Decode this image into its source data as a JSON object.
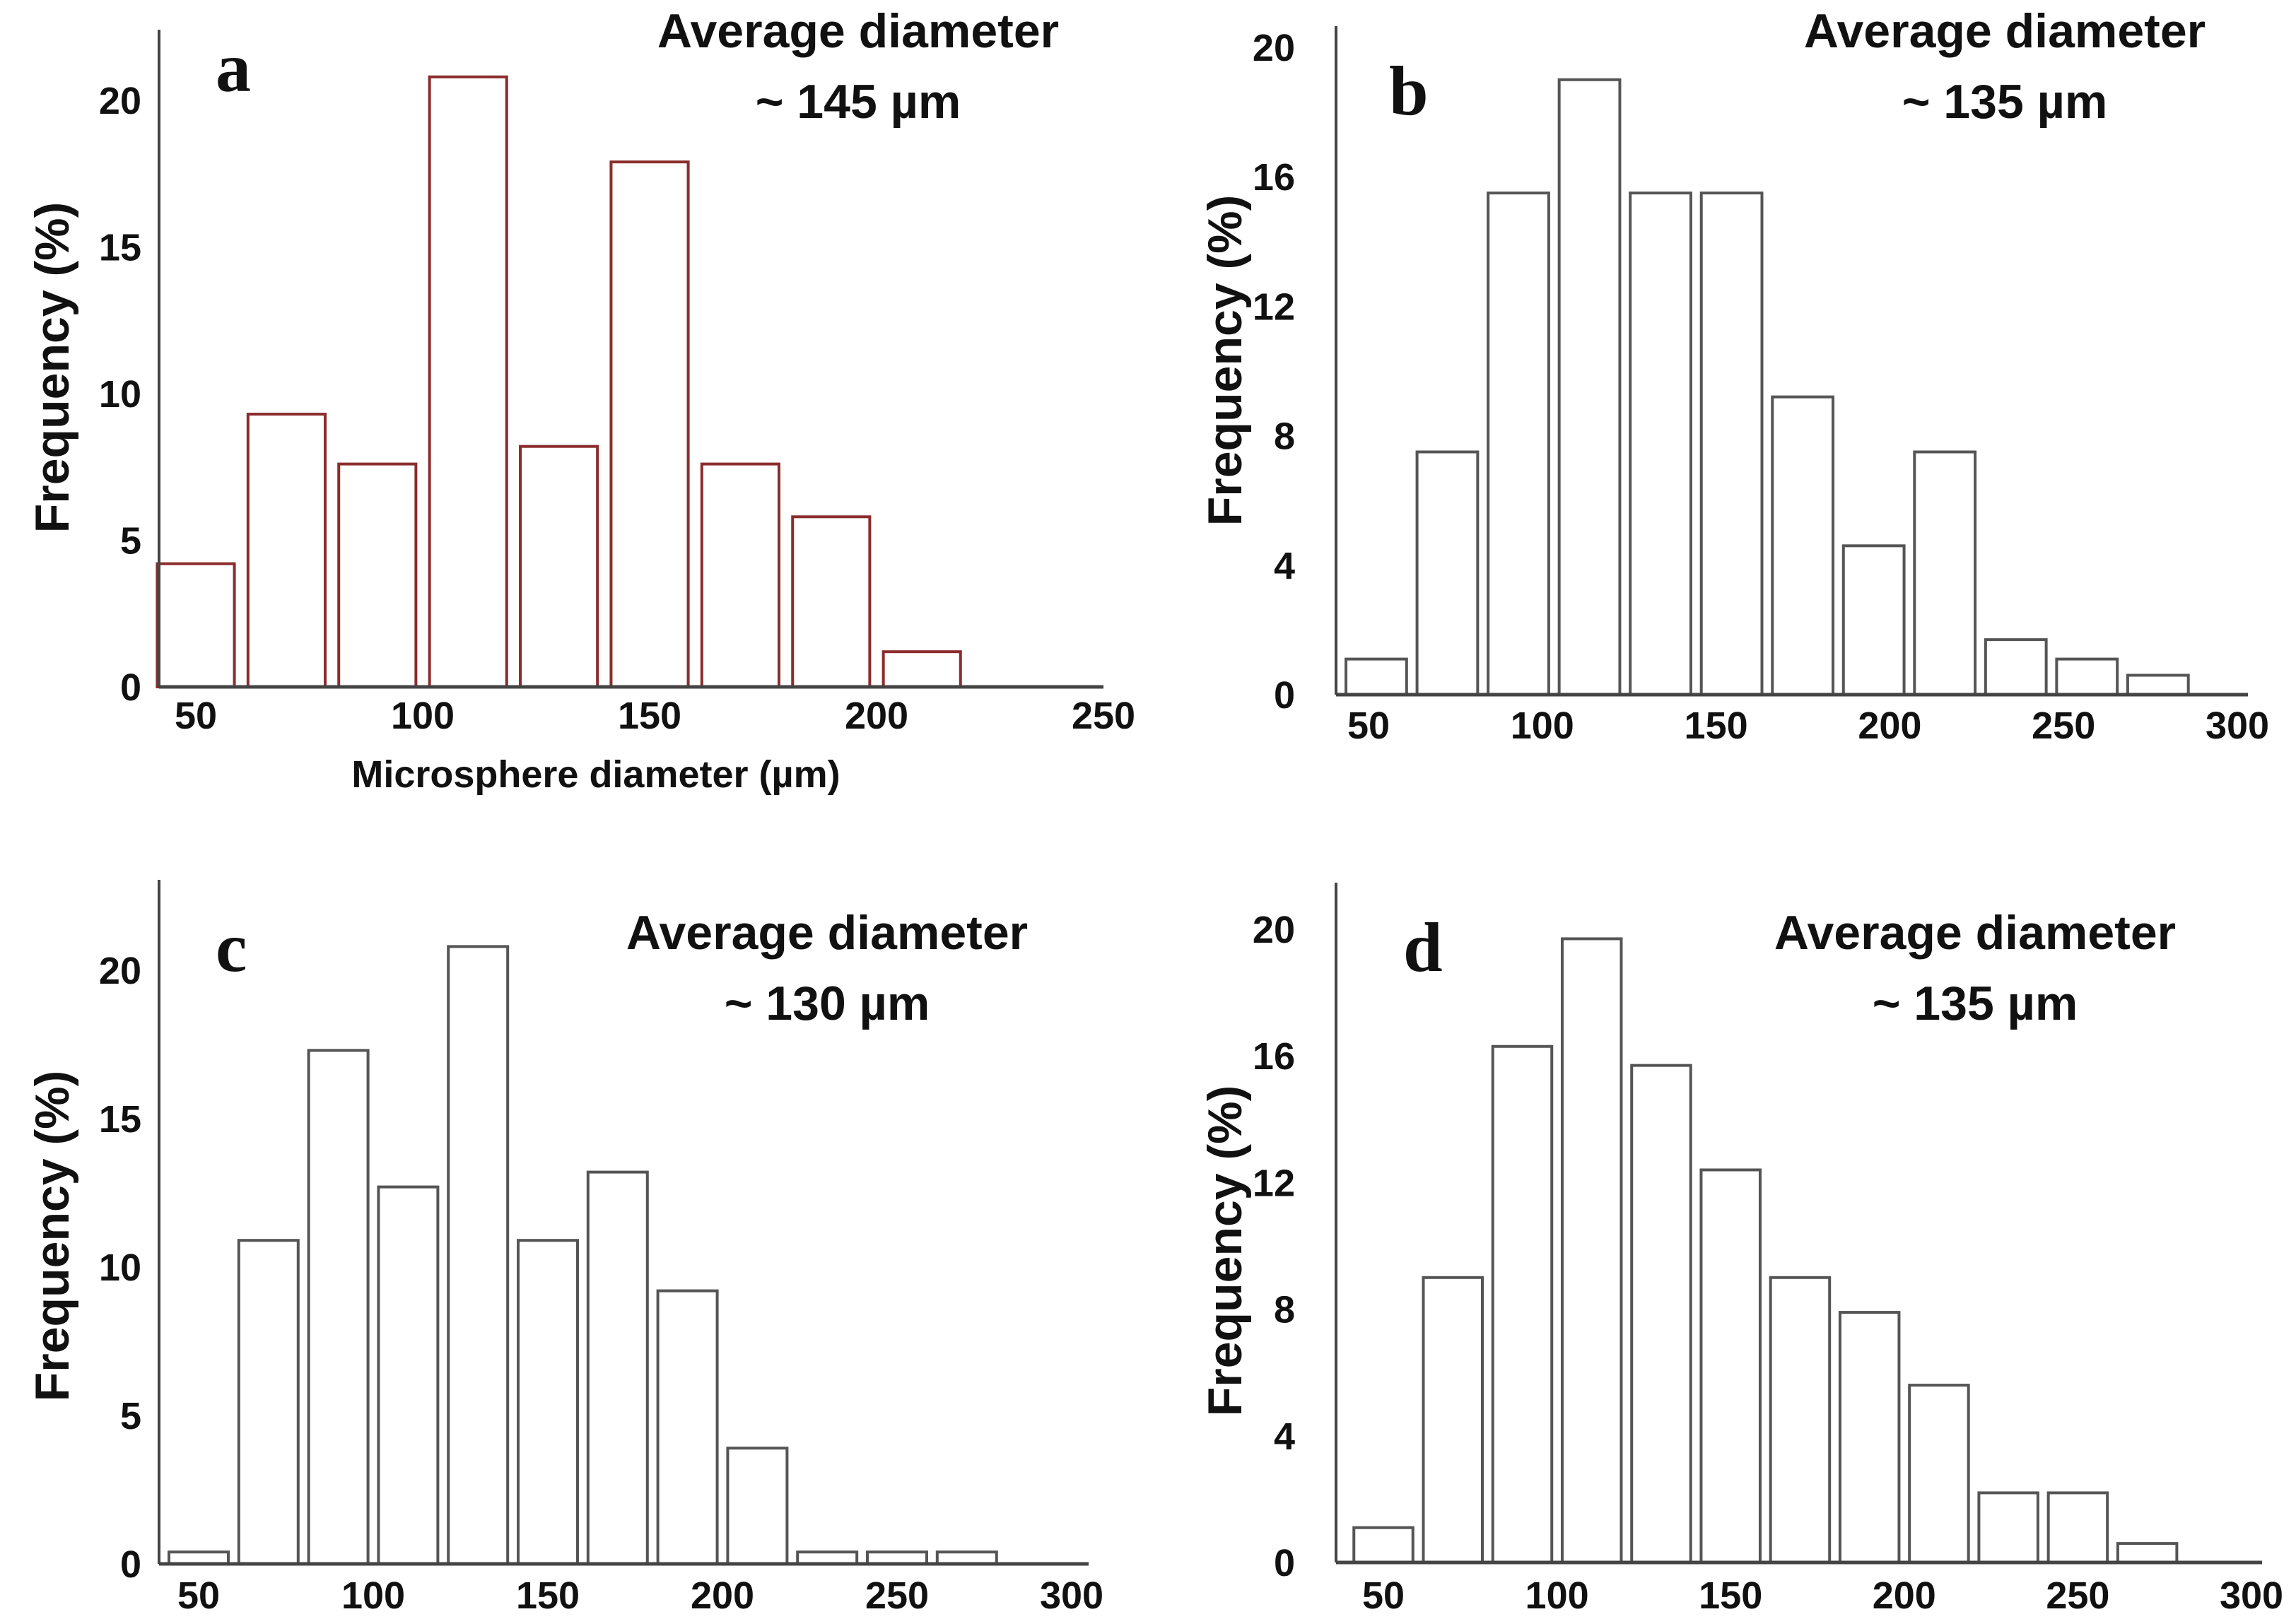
{
  "chart_data": [
    {
      "type": "bar",
      "panel": "a",
      "title": "Average diameter",
      "subtitle": "~ 145 µm",
      "xlabel": "Microsphere diameter (µm)",
      "ylabel": "Frequency (%)",
      "xticks": [
        "50",
        "100",
        "150",
        "200",
        "250"
      ],
      "yticks": [
        "0",
        "5",
        "10",
        "15",
        "20"
      ],
      "xlim": [
        43,
        250
      ],
      "ylim": [
        0,
        22.6
      ],
      "bin_start": 40,
      "bin_width": 20,
      "values": [
        4.2,
        9.3,
        7.6,
        20.8,
        8.2,
        17.9,
        7.6,
        5.8,
        1.2
      ],
      "color": "#8b2c2c",
      "grid": false
    },
    {
      "type": "bar",
      "panel": "b",
      "title": "Average diameter",
      "subtitle": "~ 135 µm",
      "xlabel": "",
      "ylabel": "Frequency (%)",
      "xticks": [
        "50",
        "100",
        "150",
        "200",
        "250",
        "300"
      ],
      "yticks": [
        "0",
        "4",
        "8",
        "12",
        "16",
        "20"
      ],
      "xlim": [
        42,
        302
      ],
      "ylim": [
        0,
        20.8
      ],
      "bin_start": 42,
      "bin_width": 20.45,
      "values": [
        1.1,
        7.5,
        15.5,
        19.0,
        15.5,
        15.5,
        9.2,
        4.6,
        7.5,
        1.7,
        1.1,
        0.6
      ],
      "color": "#555555",
      "grid": false
    },
    {
      "type": "bar",
      "panel": "c",
      "title": "Average diameter",
      "subtitle": "~ 130 µm",
      "xlabel": "",
      "ylabel": "Frequency (%)",
      "xticks": [
        "50",
        "100",
        "150",
        "200",
        "250",
        "300"
      ],
      "yticks": [
        "0",
        "5",
        "10",
        "15",
        "20"
      ],
      "xlim": [
        40,
        303
      ],
      "ylim": [
        0,
        22.9
      ],
      "bin_start": 40,
      "bin_width": 20,
      "values": [
        0.4,
        10.9,
        17.3,
        12.7,
        20.8,
        10.9,
        13.2,
        9.2,
        3.9,
        0.4,
        0.4,
        0.4
      ],
      "color": "#555555",
      "grid": false
    },
    {
      "type": "bar",
      "panel": "d",
      "title": "Average diameter",
      "subtitle": "~ 135 µm",
      "xlabel": "",
      "ylabel": "Frequency (%)",
      "xticks": [
        "50",
        "100",
        "150",
        "200",
        "250",
        "300"
      ],
      "yticks": [
        "0",
        "4",
        "8",
        "12",
        "16",
        "20"
      ],
      "xlim": [
        40,
        302
      ],
      "ylim": [
        0,
        21.4
      ],
      "bin_start": 40,
      "bin_width": 20,
      "values": [
        1.1,
        9.0,
        16.3,
        19.7,
        15.7,
        12.4,
        9.0,
        7.9,
        5.6,
        2.2,
        2.2,
        0.6
      ],
      "color": "#555555",
      "grid": false
    }
  ]
}
